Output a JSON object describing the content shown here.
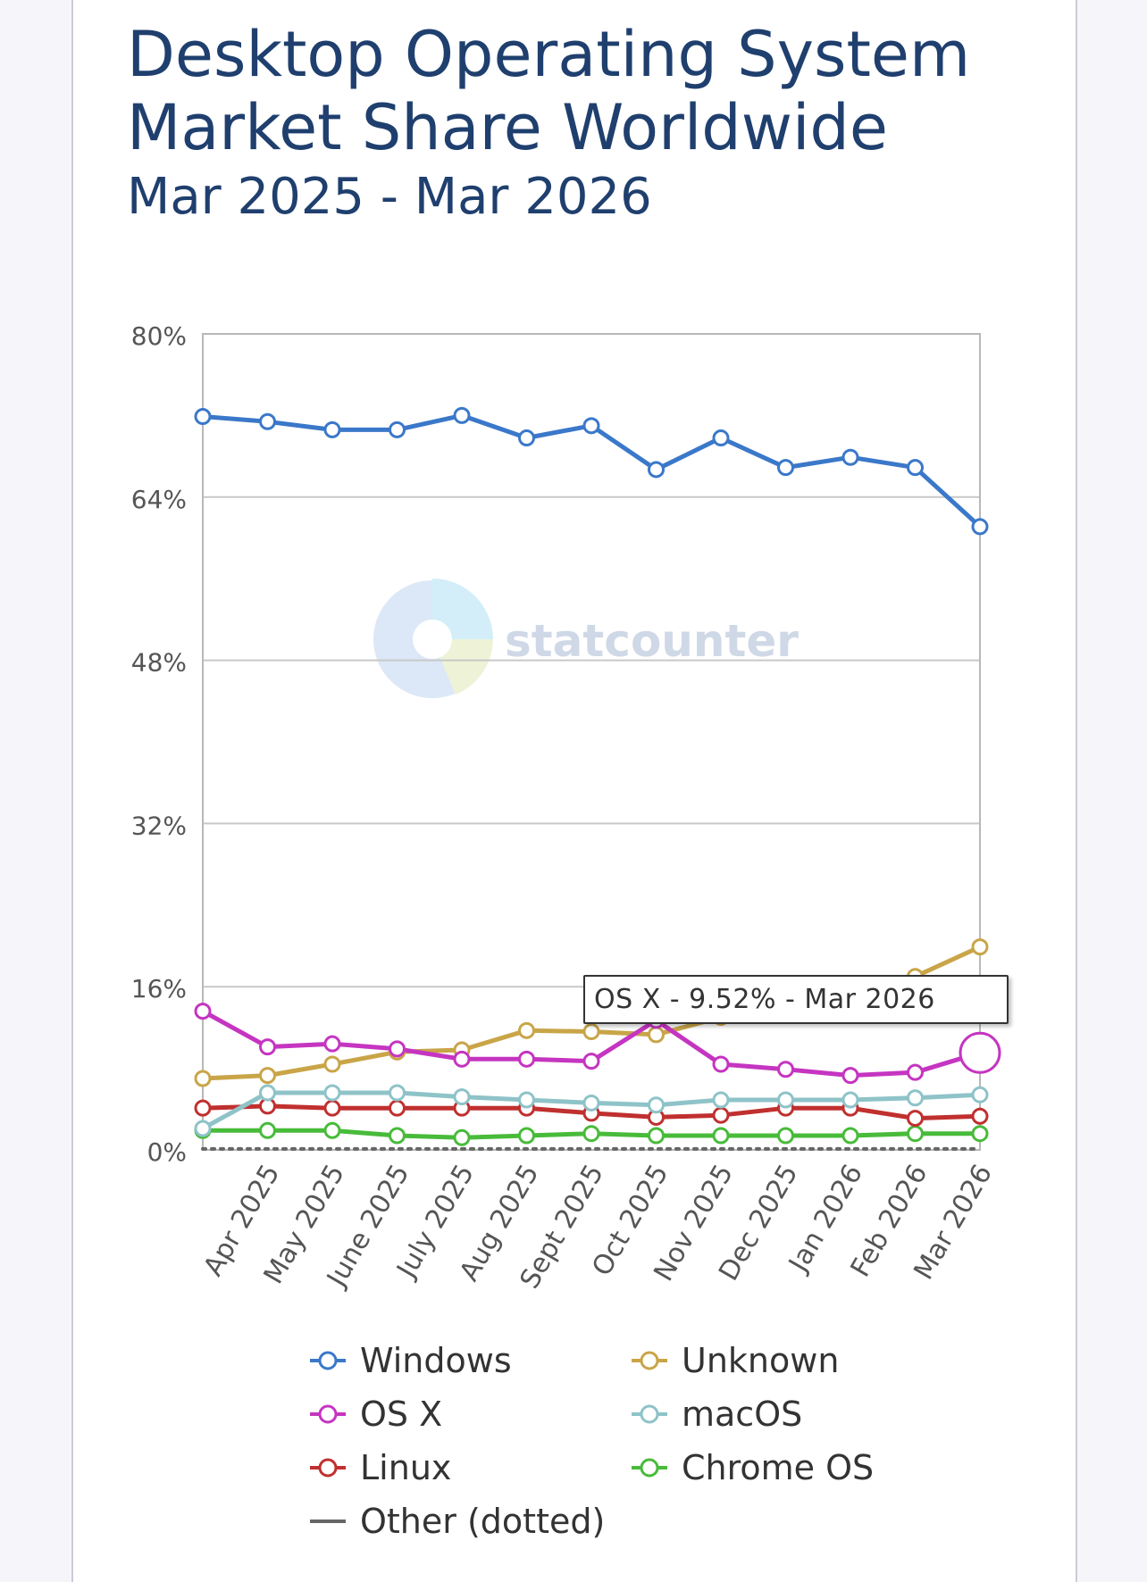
{
  "chart_data": {
    "type": "line",
    "title": "Desktop Operating System Market Share Worldwide",
    "subtitle": "Mar 2025 - Mar 2026",
    "categories": [
      "Mar 2025",
      "Apr 2025",
      "May 2025",
      "June 2025",
      "July 2025",
      "Aug 2025",
      "Sept 2025",
      "Oct 2025",
      "Nov 2025",
      "Dec 2025",
      "Jan 2026",
      "Feb 2026",
      "Mar 2026"
    ],
    "x_tick_labels": [
      "Apr 2025",
      "May 2025",
      "June 2025",
      "July 2025",
      "Aug 2025",
      "Sept 2025",
      "Oct 2025",
      "Nov 2025",
      "Dec 2025",
      "Jan 2026",
      "Feb 2026",
      "Mar 2026"
    ],
    "y_tick_labels": [
      "80%",
      "64%",
      "48%",
      "32%",
      "16%",
      "0%"
    ],
    "ylim": [
      0,
      80
    ],
    "grid": true,
    "legend_position": "bottom",
    "watermark": "statcounter",
    "series": [
      {
        "name": "Windows",
        "color": "#3a78c9",
        "values": [
          71.9,
          71.4,
          70.6,
          70.6,
          72.0,
          69.8,
          71.0,
          66.7,
          69.8,
          66.9,
          67.9,
          66.9,
          61.1
        ]
      },
      {
        "name": "Unknown",
        "color": "#c9a548",
        "values": [
          7.0,
          7.3,
          8.4,
          9.6,
          9.8,
          11.7,
          11.6,
          11.3,
          13.0,
          14.6,
          15.2,
          17.0,
          19.9
        ]
      },
      {
        "name": "OS X",
        "color": "#c535c1",
        "values": [
          13.6,
          10.1,
          10.4,
          9.9,
          8.9,
          8.9,
          8.7,
          12.7,
          8.4,
          7.9,
          7.3,
          7.6,
          9.52
        ]
      },
      {
        "name": "macOS",
        "color": "#8ec3c8",
        "values": [
          2.1,
          5.6,
          5.6,
          5.6,
          5.2,
          4.9,
          4.6,
          4.4,
          4.9,
          4.9,
          4.9,
          5.1,
          5.4
        ]
      },
      {
        "name": "Linux",
        "color": "#c0302f",
        "values": [
          4.1,
          4.3,
          4.1,
          4.1,
          4.1,
          4.1,
          3.6,
          3.2,
          3.4,
          4.1,
          4.1,
          3.1,
          3.3
        ]
      },
      {
        "name": "Chrome OS",
        "color": "#48bb3a",
        "values": [
          1.9,
          1.9,
          1.9,
          1.4,
          1.2,
          1.4,
          1.6,
          1.4,
          1.4,
          1.4,
          1.4,
          1.6,
          1.6
        ]
      },
      {
        "name": "Other (dotted)",
        "color": "#666666",
        "dotted": true,
        "values": [
          0.1,
          0.1,
          0.1,
          0.1,
          0.1,
          0.1,
          0.1,
          0.1,
          0.1,
          0.1,
          0.1,
          0.1,
          0.1
        ]
      }
    ],
    "tooltip": {
      "text": "OS X - 9.52% - Mar 2026",
      "series": "OS X",
      "category": "Mar 2026"
    }
  }
}
